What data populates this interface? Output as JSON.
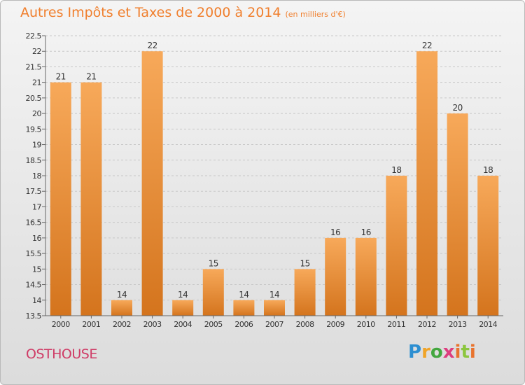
{
  "header": {
    "title": "Autres Impôts et Taxes de 2000 à 2014",
    "subtitle": "(en milliers d'€)"
  },
  "footer": {
    "commune": "OSTHOUSE",
    "logo": "Proxiti"
  },
  "colors": {
    "bar_light": "#f7a95a",
    "bar_dark": "#d4741d",
    "title": "#f07f2d",
    "commune": "#cf3b66"
  },
  "chart_data": {
    "type": "bar",
    "title": "Autres Impôts et Taxes de 2000 à 2014",
    "subtitle": "(en milliers d'€)",
    "categories": [
      "2000",
      "2001",
      "2002",
      "2003",
      "2004",
      "2005",
      "2006",
      "2007",
      "2008",
      "2009",
      "2010",
      "2011",
      "2012",
      "2013",
      "2014"
    ],
    "values": [
      21,
      21,
      14,
      22,
      14,
      15,
      14,
      14,
      15,
      16,
      16,
      18,
      22,
      20,
      18
    ],
    "value_labels": [
      "21",
      "21",
      "14",
      "22",
      "14",
      "15",
      "14",
      "14",
      "15",
      "16",
      "16",
      "18",
      "22",
      "20",
      "18"
    ],
    "ylim": [
      13.5,
      22.5
    ],
    "yticks": [
      13.5,
      14,
      14.5,
      15,
      15.5,
      16,
      16.5,
      17,
      17.5,
      18,
      18.5,
      19,
      19.5,
      20,
      20.5,
      21,
      21.5,
      22,
      22.5
    ],
    "ytick_labels": [
      "13.5",
      "14",
      "14.5",
      "15",
      "15.5",
      "16",
      "16.5",
      "17",
      "17.5",
      "18",
      "18.5",
      "19",
      "19.5",
      "20",
      "20.5",
      "21",
      "21.5",
      "22",
      "22.5"
    ],
    "grid": true,
    "xlabel": "",
    "ylabel": ""
  }
}
